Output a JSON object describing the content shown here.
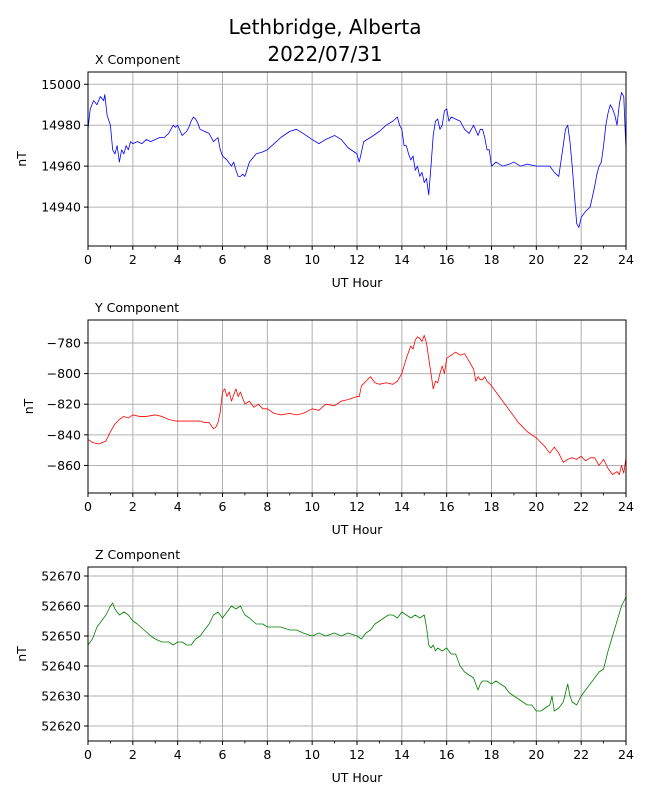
{
  "figure": {
    "title_line1": "Lethbridge, Alberta",
    "title_line2": "2022/07/31"
  },
  "chart_data": [
    {
      "type": "line",
      "panel_title": "X Component",
      "xlabel": "UT Hour",
      "ylabel": "nT",
      "xlim": [
        0,
        24
      ],
      "ylim": [
        14921,
        15006
      ],
      "xticks": [
        0,
        2,
        4,
        6,
        8,
        10,
        12,
        14,
        16,
        18,
        20,
        22,
        24
      ],
      "yticks": [
        14940,
        14960,
        14980,
        15000
      ],
      "grid": true,
      "color": "#0000ff",
      "series": [
        {
          "x": [
            0,
            0.1,
            0.25,
            0.4,
            0.55,
            0.7,
            0.75,
            0.85,
            1.0,
            1.1,
            1.2,
            1.3,
            1.4,
            1.5,
            1.6,
            1.7,
            1.8,
            1.9,
            2.0,
            2.2,
            2.4,
            2.6,
            2.8,
            3.0,
            3.2,
            3.4,
            3.6,
            3.8,
            3.9,
            4.0,
            4.2,
            4.4,
            4.5,
            4.6,
            4.7,
            4.8,
            4.9,
            5.0,
            5.2,
            5.4,
            5.6,
            5.8,
            5.9,
            6.0,
            6.2,
            6.4,
            6.5,
            6.6,
            6.7,
            6.8,
            6.9,
            7.0,
            7.2,
            7.5,
            7.8,
            8.0,
            8.3,
            8.6,
            9.0,
            9.3,
            9.6,
            10.0,
            10.3,
            10.6,
            11.0,
            11.3,
            11.6,
            12.0,
            12.1,
            12.3,
            12.6,
            13.0,
            13.3,
            13.6,
            13.8,
            13.9,
            14.0,
            14.1,
            14.2,
            14.3,
            14.4,
            14.5,
            14.6,
            14.7,
            14.8,
            14.9,
            15.0,
            15.1,
            15.2,
            15.3,
            15.4,
            15.5,
            15.6,
            15.7,
            15.8,
            15.9,
            16.0,
            16.1,
            16.2,
            16.4,
            16.6,
            16.8,
            17.0,
            17.2,
            17.4,
            17.5,
            17.6,
            17.7,
            17.8,
            17.9,
            18.0,
            18.2,
            18.5,
            18.8,
            19.0,
            19.3,
            19.6,
            20.0,
            20.3,
            20.6,
            20.8,
            21.0,
            21.2,
            21.3,
            21.4,
            21.5,
            21.6,
            21.7,
            21.8,
            21.9,
            22.0,
            22.2,
            22.4,
            22.6,
            22.7,
            22.8,
            22.9,
            23.0,
            23.1,
            23.2,
            23.3,
            23.4,
            23.5,
            23.6,
            23.7,
            23.8,
            23.9,
            24.0
          ],
          "y": [
            14978,
            14988,
            14992,
            14990,
            14994,
            14992,
            14995,
            14985,
            14980,
            14968,
            14966,
            14970,
            14962,
            14968,
            14966,
            14970,
            14968,
            14972,
            14971,
            14972,
            14971,
            14973,
            14972,
            14973,
            14974,
            14974,
            14976,
            14980,
            14979,
            14980,
            14975,
            14977,
            14979,
            14982,
            14984,
            14983,
            14981,
            14978,
            14977,
            14976,
            14972,
            14974,
            14968,
            14965,
            14963,
            14960,
            14962,
            14958,
            14955,
            14955,
            14956,
            14955,
            14962,
            14966,
            14967,
            14968,
            14971,
            14974,
            14977,
            14978,
            14976,
            14973,
            14971,
            14973,
            14975,
            14973,
            14969,
            14966,
            14962,
            14972,
            14974,
            14977,
            14980,
            14982,
            14984,
            14980,
            14978,
            14970,
            14970,
            14966,
            14963,
            14965,
            14958,
            14960,
            14955,
            14957,
            14952,
            14954,
            14946,
            14960,
            14975,
            14982,
            14983,
            14978,
            14980,
            14987,
            14988,
            14982,
            14984,
            14983,
            14982,
            14978,
            14976,
            14980,
            14975,
            14978,
            14978,
            14974,
            14968,
            14968,
            14960,
            14962,
            14960,
            14961,
            14962,
            14960,
            14961,
            14960,
            14960,
            14960,
            14957,
            14955,
            14970,
            14978,
            14980,
            14972,
            14960,
            14946,
            14932,
            14930,
            14935,
            14938,
            14940,
            14950,
            14956,
            14960,
            14962,
            14970,
            14980,
            14986,
            14990,
            14988,
            14985,
            14980,
            14990,
            14996,
            14994,
            14968
          ]
        }
      ]
    },
    {
      "type": "line",
      "panel_title": "Y Component",
      "xlabel": "UT Hour",
      "ylabel": "nT",
      "xlim": [
        0,
        24
      ],
      "ylim": [
        -878,
        -765
      ],
      "xticks": [
        0,
        2,
        4,
        6,
        8,
        10,
        12,
        14,
        16,
        18,
        20,
        22,
        24
      ],
      "yticks": [
        -860,
        -840,
        -820,
        -800,
        -780
      ],
      "grid": true,
      "color": "#ff0000",
      "series": [
        {
          "x": [
            0,
            0.2,
            0.5,
            0.8,
            1.0,
            1.2,
            1.4,
            1.6,
            1.8,
            2.0,
            2.3,
            2.6,
            3.0,
            3.3,
            3.6,
            3.9,
            4.2,
            4.5,
            4.8,
            5.0,
            5.2,
            5.4,
            5.5,
            5.6,
            5.7,
            5.8,
            5.9,
            6.0,
            6.1,
            6.2,
            6.3,
            6.4,
            6.5,
            6.6,
            6.7,
            6.8,
            6.9,
            7.0,
            7.2,
            7.4,
            7.6,
            7.8,
            8.0,
            8.3,
            8.6,
            9.0,
            9.3,
            9.6,
            10.0,
            10.3,
            10.6,
            11.0,
            11.3,
            11.6,
            12.0,
            12.1,
            12.2,
            12.4,
            12.6,
            12.8,
            13.0,
            13.3,
            13.6,
            13.8,
            14.0,
            14.1,
            14.2,
            14.3,
            14.4,
            14.5,
            14.6,
            14.7,
            14.8,
            14.9,
            15.0,
            15.1,
            15.2,
            15.3,
            15.4,
            15.5,
            15.6,
            15.7,
            15.8,
            15.9,
            16.0,
            16.2,
            16.4,
            16.6,
            16.8,
            17.0,
            17.2,
            17.3,
            17.4,
            17.5,
            17.6,
            17.7,
            17.8,
            18.0,
            18.2,
            18.4,
            18.6,
            18.8,
            19.0,
            19.2,
            19.4,
            19.6,
            19.8,
            20.0,
            20.2,
            20.4,
            20.6,
            20.8,
            21.0,
            21.2,
            21.4,
            21.6,
            21.8,
            22.0,
            22.2,
            22.4,
            22.6,
            22.8,
            23.0,
            23.2,
            23.4,
            23.6,
            23.7,
            23.8,
            23.9,
            24.0
          ],
          "y": [
            -843,
            -845,
            -846,
            -844,
            -838,
            -833,
            -830,
            -828,
            -829,
            -827,
            -828,
            -828,
            -827,
            -828,
            -830,
            -831,
            -831,
            -831,
            -831,
            -831,
            -832,
            -832,
            -834,
            -836,
            -835,
            -832,
            -825,
            -812,
            -810,
            -815,
            -812,
            -818,
            -814,
            -810,
            -815,
            -812,
            -816,
            -820,
            -818,
            -822,
            -820,
            -823,
            -823,
            -826,
            -827,
            -826,
            -827,
            -826,
            -823,
            -824,
            -820,
            -821,
            -818,
            -817,
            -815,
            -815,
            -808,
            -805,
            -802,
            -806,
            -807,
            -806,
            -807,
            -805,
            -800,
            -795,
            -790,
            -786,
            -782,
            -784,
            -778,
            -776,
            -777,
            -779,
            -775,
            -780,
            -790,
            -800,
            -810,
            -805,
            -806,
            -800,
            -795,
            -800,
            -790,
            -788,
            -786,
            -788,
            -787,
            -792,
            -797,
            -805,
            -802,
            -804,
            -804,
            -802,
            -805,
            -808,
            -812,
            -816,
            -820,
            -824,
            -828,
            -832,
            -835,
            -838,
            -840,
            -842,
            -845,
            -848,
            -852,
            -848,
            -852,
            -858,
            -856,
            -855,
            -856,
            -854,
            -857,
            -855,
            -855,
            -860,
            -856,
            -862,
            -866,
            -864,
            -866,
            -860,
            -865,
            -855
          ]
        }
      ]
    },
    {
      "type": "line",
      "panel_title": "Z Component",
      "xlabel": "UT Hour",
      "ylabel": "nT",
      "xlim": [
        0,
        24
      ],
      "ylim": [
        52615,
        52673
      ],
      "xticks": [
        0,
        2,
        4,
        6,
        8,
        10,
        12,
        14,
        16,
        18,
        20,
        22,
        24
      ],
      "yticks": [
        52620,
        52630,
        52640,
        52650,
        52660,
        52670
      ],
      "grid": true,
      "color": "#008000",
      "series": [
        {
          "x": [
            0,
            0.2,
            0.4,
            0.6,
            0.8,
            1.0,
            1.1,
            1.2,
            1.4,
            1.6,
            1.8,
            2.0,
            2.2,
            2.5,
            2.8,
            3.0,
            3.3,
            3.6,
            3.8,
            4.0,
            4.2,
            4.4,
            4.6,
            4.8,
            5.0,
            5.2,
            5.4,
            5.6,
            5.8,
            6.0,
            6.2,
            6.4,
            6.6,
            6.8,
            7.0,
            7.2,
            7.5,
            7.8,
            8.0,
            8.3,
            8.6,
            9.0,
            9.3,
            9.6,
            10.0,
            10.3,
            10.6,
            11.0,
            11.3,
            11.6,
            12.0,
            12.2,
            12.4,
            12.6,
            12.8,
            13.0,
            13.2,
            13.4,
            13.6,
            13.8,
            14.0,
            14.2,
            14.4,
            14.6,
            14.8,
            15.0,
            15.1,
            15.2,
            15.3,
            15.4,
            15.5,
            15.6,
            15.8,
            16.0,
            16.2,
            16.4,
            16.6,
            16.8,
            17.0,
            17.2,
            17.4,
            17.5,
            17.6,
            17.8,
            18.0,
            18.2,
            18.4,
            18.6,
            18.8,
            19.0,
            19.2,
            19.4,
            19.6,
            19.8,
            20.0,
            20.2,
            20.4,
            20.6,
            20.7,
            20.8,
            21.0,
            21.2,
            21.3,
            21.4,
            21.5,
            21.6,
            21.8,
            22.0,
            22.2,
            22.4,
            22.6,
            22.8,
            23.0,
            23.2,
            23.4,
            23.6,
            23.8,
            24.0
          ],
          "y": [
            52647,
            52649,
            52653,
            52655,
            52657,
            52660,
            52661,
            52659,
            52657,
            52658,
            52657,
            52655,
            52654,
            52652,
            52650,
            52649,
            52648,
            52648,
            52647,
            52648,
            52648,
            52647,
            52647,
            52649,
            52650,
            52652,
            52654,
            52657,
            52658,
            52656,
            52658,
            52660,
            52659,
            52660,
            52657,
            52656,
            52654,
            52654,
            52653,
            52653,
            52653,
            52652,
            52652,
            52651,
            52650,
            52651,
            52650,
            52651,
            52650,
            52651,
            52650,
            52649,
            52651,
            52652,
            52654,
            52655,
            52656,
            52657,
            52657,
            52656,
            52658,
            52657,
            52656,
            52657,
            52656,
            52657,
            52653,
            52647,
            52646,
            52647,
            52645,
            52646,
            52645,
            52646,
            52644,
            52644,
            52640,
            52638,
            52637,
            52636,
            52632,
            52634,
            52635,
            52635,
            52634,
            52635,
            52634,
            52633,
            52631,
            52630,
            52629,
            52628,
            52627,
            52627,
            52625,
            52625,
            52626,
            52627,
            52630,
            52625,
            52626,
            52628,
            52631,
            52634,
            52630,
            52628,
            52627,
            52630,
            52632,
            52634,
            52636,
            52638,
            52639,
            52645,
            52650,
            52655,
            52660,
            52663
          ]
        }
      ]
    }
  ]
}
